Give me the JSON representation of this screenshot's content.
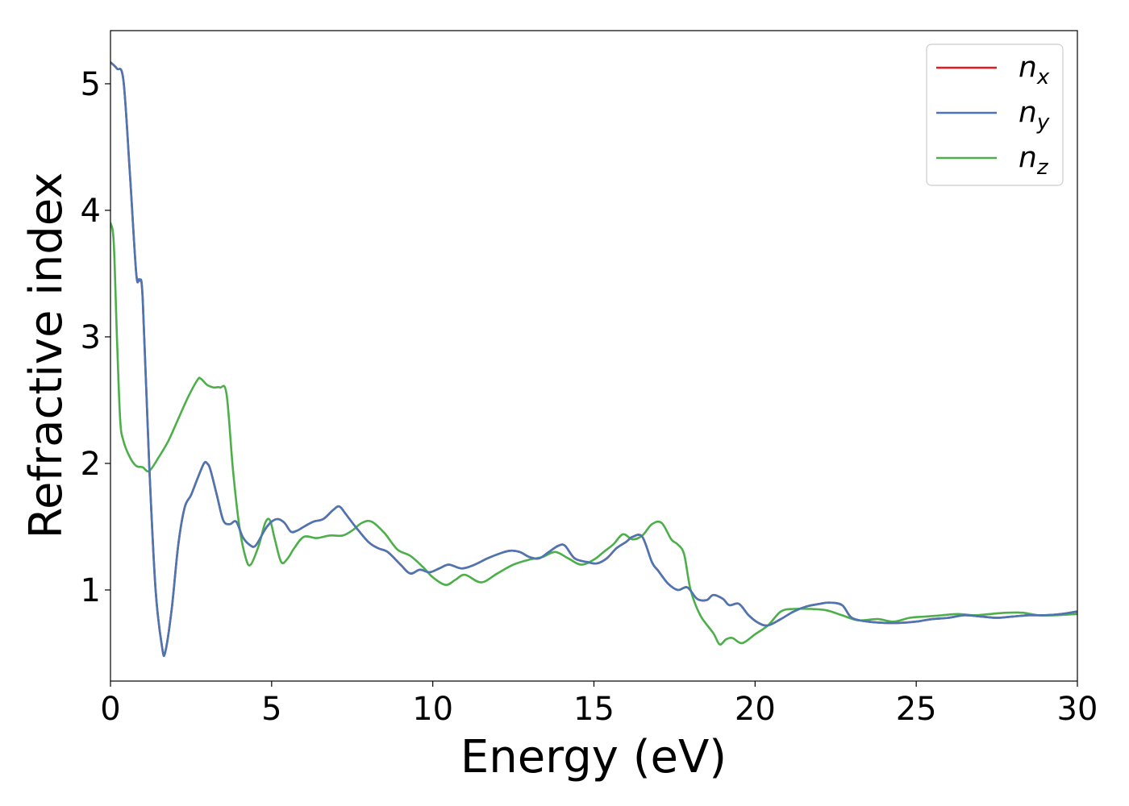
{
  "chart_data": {
    "type": "line",
    "title": "",
    "xlabel": "Energy (eV)",
    "ylabel": "Refractive index",
    "xlim": [
      0,
      30
    ],
    "ylim": [
      0.28,
      5.42
    ],
    "xticks": [
      0,
      5,
      10,
      15,
      20,
      25,
      30
    ],
    "yticks": [
      1,
      2,
      3,
      4,
      5
    ],
    "grid": false,
    "legend_position": "top-right",
    "series": [
      {
        "name": "n",
        "subscript": "x",
        "color": "#e41a1c",
        "x": [
          0,
          0.2,
          0.4,
          0.6,
          0.8,
          0.9,
          1.0,
          1.2,
          1.4,
          1.6,
          1.7,
          1.9,
          2.1,
          2.3,
          2.5,
          2.7,
          2.9,
          3.0,
          3.1,
          3.3,
          3.5,
          3.7,
          3.9,
          4.1,
          4.3,
          4.5,
          4.8,
          5.0,
          5.2,
          5.4,
          5.6,
          5.8,
          6.0,
          6.3,
          6.6,
          6.9,
          7.1,
          7.3,
          7.6,
          8.0,
          8.3,
          8.6,
          9.0,
          9.3,
          9.6,
          9.9,
          10.2,
          10.5,
          10.9,
          11.3,
          11.7,
          12.1,
          12.4,
          12.7,
          13.0,
          13.3,
          13.6,
          13.9,
          14.1,
          14.4,
          14.8,
          15.1,
          15.4,
          15.7,
          16.0,
          16.2,
          16.5,
          16.8,
          17.0,
          17.3,
          17.6,
          17.9,
          18.2,
          18.5,
          18.7,
          19.0,
          19.2,
          19.5,
          19.8,
          20.1,
          20.4,
          20.8,
          21.2,
          21.6,
          22.0,
          22.3,
          22.7,
          23.0,
          23.5,
          24.0,
          24.5,
          25.0,
          25.5,
          26.0,
          26.5,
          27.0,
          27.5,
          28.0,
          28.5,
          29.0,
          29.5,
          30.0
        ],
        "y": [
          5.17,
          5.12,
          5.03,
          4.3,
          3.5,
          3.45,
          3.3,
          2.0,
          1.0,
          0.55,
          0.51,
          0.85,
          1.35,
          1.65,
          1.75,
          1.88,
          2.0,
          2.0,
          1.95,
          1.75,
          1.55,
          1.52,
          1.54,
          1.42,
          1.36,
          1.35,
          1.48,
          1.54,
          1.56,
          1.53,
          1.46,
          1.47,
          1.5,
          1.54,
          1.56,
          1.63,
          1.66,
          1.6,
          1.5,
          1.38,
          1.33,
          1.3,
          1.2,
          1.13,
          1.16,
          1.14,
          1.17,
          1.2,
          1.17,
          1.2,
          1.25,
          1.29,
          1.31,
          1.3,
          1.26,
          1.25,
          1.3,
          1.35,
          1.35,
          1.25,
          1.22,
          1.21,
          1.25,
          1.33,
          1.38,
          1.42,
          1.42,
          1.22,
          1.15,
          1.05,
          1.0,
          1.02,
          0.93,
          0.92,
          0.96,
          0.93,
          0.88,
          0.89,
          0.8,
          0.74,
          0.72,
          0.77,
          0.83,
          0.87,
          0.89,
          0.9,
          0.88,
          0.78,
          0.75,
          0.74,
          0.74,
          0.75,
          0.77,
          0.78,
          0.8,
          0.79,
          0.78,
          0.79,
          0.8,
          0.8,
          0.81,
          0.83
        ]
      },
      {
        "name": "n",
        "subscript": "y",
        "color": "#4a77b4",
        "x": [
          0,
          0.2,
          0.4,
          0.6,
          0.8,
          0.9,
          1.0,
          1.2,
          1.4,
          1.6,
          1.7,
          1.9,
          2.1,
          2.3,
          2.5,
          2.7,
          2.9,
          3.0,
          3.1,
          3.3,
          3.5,
          3.7,
          3.9,
          4.1,
          4.3,
          4.5,
          4.8,
          5.0,
          5.2,
          5.4,
          5.6,
          5.8,
          6.0,
          6.3,
          6.6,
          6.9,
          7.1,
          7.3,
          7.6,
          8.0,
          8.3,
          8.6,
          9.0,
          9.3,
          9.6,
          9.9,
          10.2,
          10.5,
          10.9,
          11.3,
          11.7,
          12.1,
          12.4,
          12.7,
          13.0,
          13.3,
          13.6,
          13.9,
          14.1,
          14.4,
          14.8,
          15.1,
          15.4,
          15.7,
          16.0,
          16.2,
          16.5,
          16.8,
          17.0,
          17.3,
          17.6,
          17.9,
          18.2,
          18.5,
          18.7,
          19.0,
          19.2,
          19.5,
          19.8,
          20.1,
          20.4,
          20.8,
          21.2,
          21.6,
          22.0,
          22.3,
          22.7,
          23.0,
          23.5,
          24.0,
          24.5,
          25.0,
          25.5,
          26.0,
          26.5,
          27.0,
          27.5,
          28.0,
          28.5,
          29.0,
          29.5,
          30.0
        ],
        "y": [
          5.17,
          5.12,
          5.03,
          4.3,
          3.5,
          3.45,
          3.3,
          2.0,
          1.0,
          0.55,
          0.51,
          0.85,
          1.35,
          1.65,
          1.75,
          1.88,
          2.0,
          2.0,
          1.95,
          1.75,
          1.55,
          1.52,
          1.54,
          1.42,
          1.36,
          1.35,
          1.48,
          1.54,
          1.56,
          1.53,
          1.46,
          1.47,
          1.5,
          1.54,
          1.56,
          1.63,
          1.66,
          1.6,
          1.5,
          1.38,
          1.33,
          1.3,
          1.2,
          1.13,
          1.16,
          1.14,
          1.17,
          1.2,
          1.17,
          1.2,
          1.25,
          1.29,
          1.31,
          1.3,
          1.26,
          1.25,
          1.3,
          1.35,
          1.35,
          1.25,
          1.22,
          1.21,
          1.25,
          1.33,
          1.38,
          1.42,
          1.42,
          1.22,
          1.15,
          1.05,
          1.0,
          1.02,
          0.93,
          0.92,
          0.96,
          0.93,
          0.88,
          0.89,
          0.8,
          0.74,
          0.72,
          0.77,
          0.83,
          0.87,
          0.89,
          0.9,
          0.88,
          0.78,
          0.75,
          0.74,
          0.74,
          0.75,
          0.77,
          0.78,
          0.8,
          0.79,
          0.78,
          0.79,
          0.8,
          0.8,
          0.81,
          0.83
        ]
      },
      {
        "name": "n",
        "subscript": "z",
        "color": "#4daf4a",
        "x": [
          0,
          0.1,
          0.2,
          0.3,
          0.4,
          0.6,
          0.8,
          1.0,
          1.2,
          1.5,
          1.8,
          2.1,
          2.4,
          2.7,
          2.8,
          3.0,
          3.2,
          3.4,
          3.6,
          3.8,
          4.0,
          4.2,
          4.35,
          4.6,
          4.8,
          4.95,
          5.1,
          5.3,
          5.5,
          5.7,
          6.0,
          6.4,
          6.8,
          7.2,
          7.5,
          7.8,
          8.1,
          8.5,
          8.9,
          9.3,
          9.7,
          10.0,
          10.4,
          10.7,
          11.0,
          11.5,
          12.0,
          12.5,
          13.0,
          13.4,
          13.8,
          14.2,
          14.6,
          15.0,
          15.3,
          15.6,
          15.9,
          16.2,
          16.5,
          16.8,
          17.1,
          17.4,
          17.6,
          17.8,
          18.0,
          18.3,
          18.7,
          18.9,
          19.1,
          19.3,
          19.6,
          20.0,
          20.4,
          20.8,
          21.2,
          21.7,
          22.2,
          22.7,
          23.2,
          23.8,
          24.3,
          24.8,
          25.3,
          25.8,
          26.3,
          26.8,
          27.3,
          27.8,
          28.3,
          28.8,
          29.3,
          30.0
        ],
        "y": [
          3.9,
          3.75,
          3.0,
          2.35,
          2.18,
          2.05,
          1.98,
          1.97,
          1.94,
          2.05,
          2.18,
          2.35,
          2.52,
          2.66,
          2.67,
          2.62,
          2.6,
          2.6,
          2.55,
          1.95,
          1.5,
          1.25,
          1.2,
          1.35,
          1.53,
          1.55,
          1.4,
          1.22,
          1.25,
          1.33,
          1.42,
          1.41,
          1.43,
          1.43,
          1.47,
          1.53,
          1.54,
          1.45,
          1.32,
          1.27,
          1.18,
          1.1,
          1.04,
          1.08,
          1.12,
          1.06,
          1.13,
          1.2,
          1.24,
          1.26,
          1.3,
          1.25,
          1.2,
          1.24,
          1.3,
          1.36,
          1.44,
          1.4,
          1.43,
          1.52,
          1.53,
          1.4,
          1.36,
          1.28,
          1.0,
          0.8,
          0.66,
          0.57,
          0.61,
          0.62,
          0.58,
          0.65,
          0.72,
          0.83,
          0.85,
          0.85,
          0.84,
          0.8,
          0.76,
          0.77,
          0.75,
          0.78,
          0.79,
          0.8,
          0.81,
          0.8,
          0.81,
          0.82,
          0.82,
          0.8,
          0.8,
          0.81
        ]
      }
    ]
  }
}
